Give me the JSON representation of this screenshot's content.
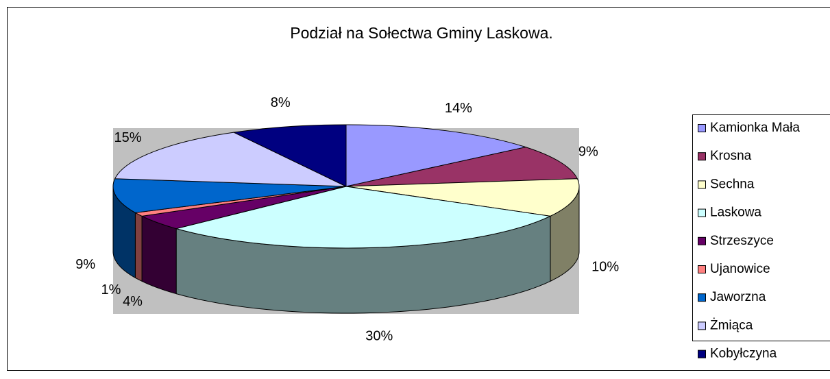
{
  "chart_data": {
    "type": "pie",
    "title": "Podział na Sołectwa Gminy Laskowa.",
    "categories": [
      "Kamionka Mała",
      "Krosna",
      "Sechna",
      "Laskowa",
      "Strzeszyce",
      "Ujanowice",
      "Jaworzna",
      "Żmiąca",
      "Kobyłczyna"
    ],
    "values": [
      14,
      9,
      10,
      30,
      4,
      1,
      9,
      15,
      8
    ],
    "value_labels": [
      "14%",
      "9%",
      "10%",
      "30%",
      "4%",
      "1%",
      "9%",
      "15%",
      "8%"
    ],
    "colors": [
      "#9999ff",
      "#993366",
      "#ffffcc",
      "#ccffff",
      "#660066",
      "#ff8080",
      "#0066cc",
      "#ccccff",
      "#000080"
    ],
    "legend": "right"
  }
}
